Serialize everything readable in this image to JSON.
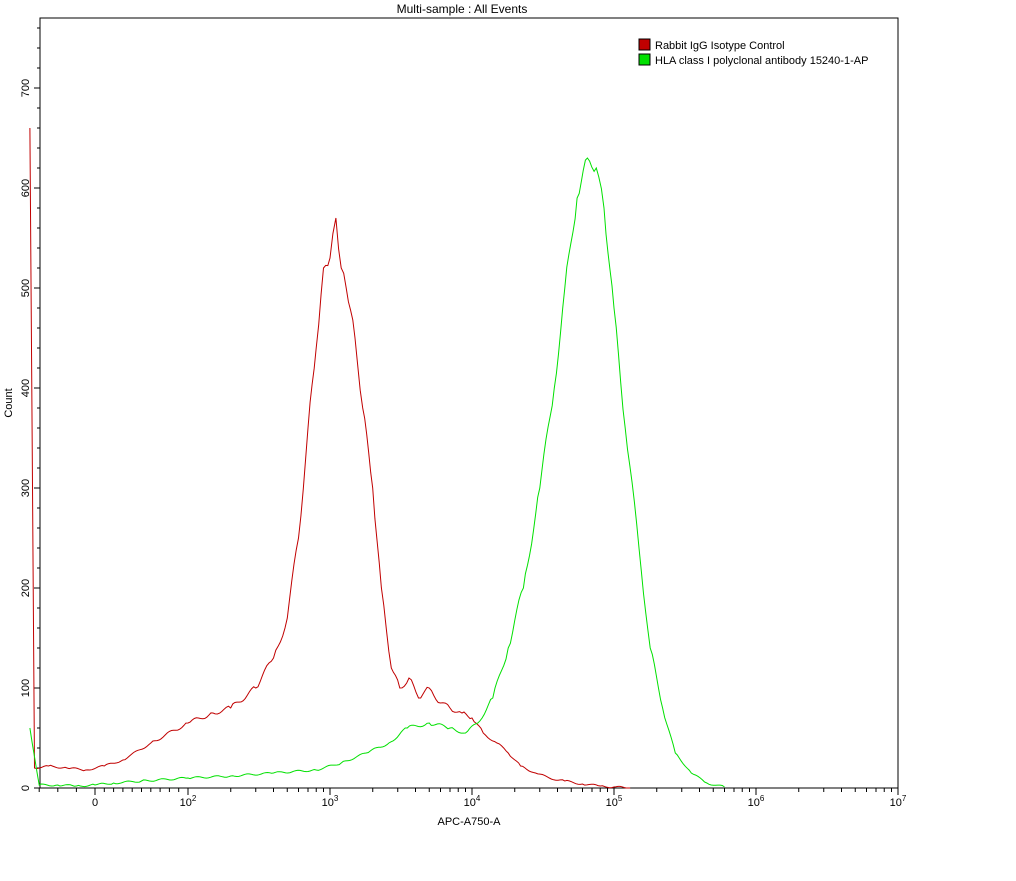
{
  "chart_data": {
    "type": "line",
    "title": "Multi-sample : All Events",
    "xlabel": "APC-A750-A",
    "ylabel": "Count",
    "x_scale": "biexponential",
    "xlim": [
      -70,
      10000000
    ],
    "ylim": [
      0,
      770
    ],
    "y_ticks": [
      0,
      100,
      200,
      300,
      400,
      500,
      600,
      700
    ],
    "x_ticks": [
      {
        "value": 0,
        "label": "0",
        "base": "0",
        "exp": ""
      },
      {
        "value": 100,
        "label": "10^2",
        "base": "10",
        "exp": "2"
      },
      {
        "value": 1000,
        "label": "10^3",
        "base": "10",
        "exp": "3"
      },
      {
        "value": 10000,
        "label": "10^4",
        "base": "10",
        "exp": "4"
      },
      {
        "value": 100000,
        "label": "10^5",
        "base": "10",
        "exp": "5"
      },
      {
        "value": 1000000,
        "label": "10^6",
        "base": "10",
        "exp": "6"
      },
      {
        "value": 10000000,
        "label": "10^7",
        "base": "10",
        "exp": "7"
      }
    ],
    "legend_position": "top-right",
    "series": [
      {
        "name": "Rabbit  IgG Isotype Control",
        "color": "#c00000",
        "x": [
          -70,
          -65,
          -50,
          -30,
          -10,
          10,
          30,
          60,
          100,
          150,
          200,
          300,
          400,
          500,
          600,
          700,
          800,
          900,
          1000,
          1100,
          1200,
          1300,
          1500,
          1700,
          2000,
          2300,
          2700,
          3100,
          3600,
          4200,
          5000,
          6000,
          7000,
          8500,
          10000,
          12000,
          15000,
          18000,
          22000,
          28000,
          35000,
          45000,
          60000,
          80000,
          100000,
          130000
        ],
        "values": [
          660,
          20,
          22,
          20,
          18,
          22,
          28,
          45,
          65,
          75,
          80,
          100,
          130,
          170,
          250,
          360,
          440,
          520,
          530,
          570,
          520,
          500,
          450,
          380,
          300,
          200,
          120,
          100,
          110,
          90,
          100,
          85,
          80,
          75,
          70,
          55,
          45,
          35,
          22,
          15,
          10,
          7,
          4,
          2,
          1,
          0
        ]
      },
      {
        "name": "HLA class I  polyclonal antibody 15240-1-AP",
        "color": "#00e000",
        "x": [
          -70,
          -60,
          -40,
          -20,
          0,
          20,
          50,
          100,
          200,
          400,
          800,
          1200,
          1800,
          2600,
          3500,
          5000,
          7000,
          9000,
          11000,
          14000,
          18000,
          23000,
          30000,
          38000,
          45000,
          55000,
          65000,
          75000,
          85000,
          100000,
          120000,
          150000,
          180000,
          220000,
          270000,
          350000,
          450000,
          600000
        ],
        "values": [
          60,
          3,
          3,
          2,
          3,
          5,
          7,
          10,
          12,
          15,
          18,
          25,
          35,
          45,
          60,
          65,
          60,
          55,
          65,
          90,
          140,
          200,
          300,
          400,
          500,
          590,
          630,
          620,
          580,
          480,
          360,
          240,
          140,
          80,
          35,
          15,
          5,
          1
        ]
      }
    ]
  }
}
